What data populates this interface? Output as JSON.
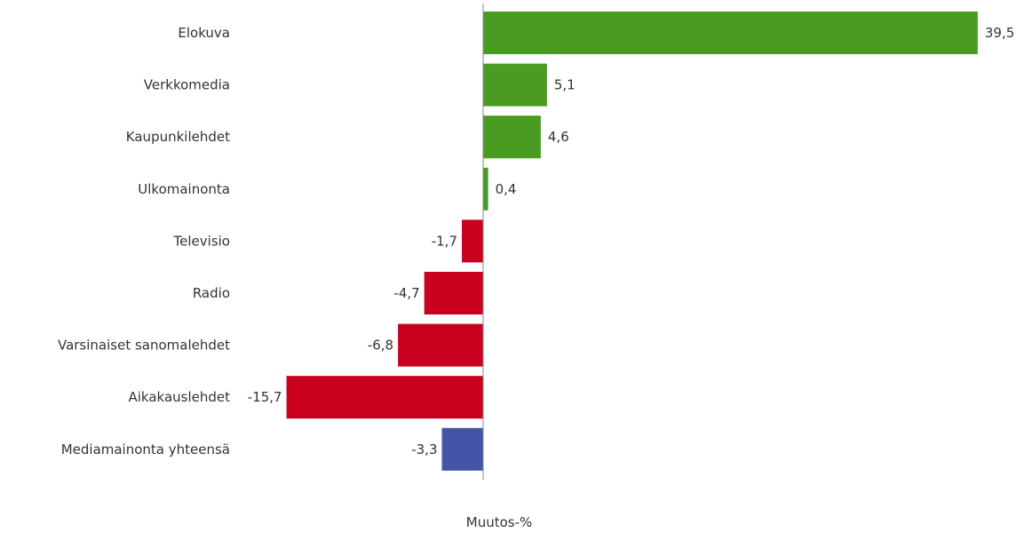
{
  "chart_data": {
    "type": "bar",
    "orientation": "horizontal",
    "categories": [
      "Elokuva",
      "Verkkomedia",
      "Kaupunkilehdet",
      "Ulkomainonta",
      "Televisio",
      "Radio",
      "Varsinaiset sanomalehdet",
      "Aikakauslehdet",
      "Mediamainonta yhteensä"
    ],
    "values": [
      39.5,
      5.1,
      4.6,
      0.4,
      -1.7,
      -4.7,
      -6.8,
      -15.7,
      -3.3
    ],
    "value_labels": [
      "39,5",
      "5,1",
      "4,6",
      "0,4",
      "-1,7",
      "-4,7",
      "-6,8",
      "-15,7",
      "-3,3"
    ],
    "bar_colors": [
      "#4a9b22",
      "#4a9b22",
      "#4a9b22",
      "#4a9b22",
      "#c8001e",
      "#c8001e",
      "#c8001e",
      "#c8001e",
      "#4453a6"
    ],
    "xlabel": "Muutos-%",
    "xlim": [
      -18,
      42
    ],
    "grid": false,
    "legend": "none"
  }
}
